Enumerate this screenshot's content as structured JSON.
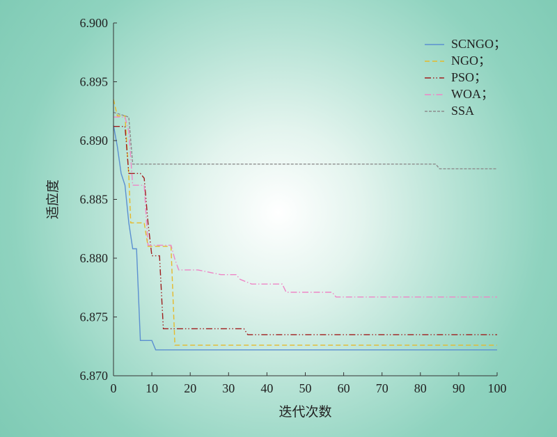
{
  "chart_data": {
    "type": "line",
    "xlabel": "迭代次数",
    "ylabel": "适应度",
    "xlim": [
      0,
      100
    ],
    "ylim": [
      6.87,
      6.9
    ],
    "x_ticks": [
      "0",
      "10",
      "20",
      "30",
      "40",
      "50",
      "60",
      "70",
      "80",
      "90",
      "100"
    ],
    "y_ticks": [
      "6.870",
      "6.875",
      "6.880",
      "6.885",
      "6.890",
      "6.895",
      "6.900"
    ],
    "grid": false,
    "legend_position": "top-right",
    "series": [
      {
        "name": "SCNGO；",
        "color": "#5b8fd0",
        "style": "solid",
        "points": [
          [
            0,
            6.8913
          ],
          [
            1,
            6.8895
          ],
          [
            2,
            6.8872
          ],
          [
            3,
            6.8862
          ],
          [
            4,
            6.883
          ],
          [
            5,
            6.8808
          ],
          [
            6,
            6.8808
          ],
          [
            7,
            6.873
          ],
          [
            10,
            6.873
          ],
          [
            11,
            6.8722
          ],
          [
            100,
            6.8722
          ]
        ]
      },
      {
        "name": "NGO；",
        "color": "#e6b92a",
        "style": "dashed",
        "points": [
          [
            0,
            6.8935
          ],
          [
            1,
            6.8921
          ],
          [
            3,
            6.8921
          ],
          [
            4,
            6.887
          ],
          [
            4.5,
            6.883
          ],
          [
            8,
            6.883
          ],
          [
            9,
            6.881
          ],
          [
            15,
            6.881
          ],
          [
            16,
            6.8726
          ],
          [
            100,
            6.8726
          ]
        ]
      },
      {
        "name": "PSO；",
        "color": "#a01c1c",
        "style": "dashdotdot",
        "points": [
          [
            0,
            6.8912
          ],
          [
            3,
            6.8912
          ],
          [
            4,
            6.8872
          ],
          [
            7,
            6.8872
          ],
          [
            8,
            6.8868
          ],
          [
            9,
            6.883
          ],
          [
            10,
            6.8802
          ],
          [
            12,
            6.8802
          ],
          [
            13,
            6.874
          ],
          [
            34,
            6.874
          ],
          [
            35,
            6.8735
          ],
          [
            100,
            6.8735
          ]
        ]
      },
      {
        "name": "WOA；",
        "color": "#ee86c6",
        "style": "dashdot",
        "points": [
          [
            0,
            6.892
          ],
          [
            3,
            6.892
          ],
          [
            4,
            6.8908
          ],
          [
            5,
            6.8862
          ],
          [
            8,
            6.8862
          ],
          [
            9,
            6.8811
          ],
          [
            15,
            6.8811
          ],
          [
            16,
            6.8799
          ],
          [
            17,
            6.879
          ],
          [
            22,
            6.879
          ],
          [
            25,
            6.8788
          ],
          [
            28,
            6.8786
          ],
          [
            32,
            6.8786
          ],
          [
            33,
            6.8782
          ],
          [
            36,
            6.8778
          ],
          [
            44,
            6.8778
          ],
          [
            45,
            6.8771
          ],
          [
            57,
            6.8771
          ],
          [
            58,
            6.8767
          ],
          [
            100,
            6.8767
          ]
        ]
      },
      {
        "name": "SSA",
        "color": "#8c8c8c",
        "style": "dotted",
        "points": [
          [
            0,
            6.8924
          ],
          [
            4,
            6.892
          ],
          [
            5,
            6.888
          ],
          [
            84,
            6.888
          ],
          [
            85,
            6.8876
          ],
          [
            100,
            6.8876
          ]
        ]
      }
    ]
  }
}
